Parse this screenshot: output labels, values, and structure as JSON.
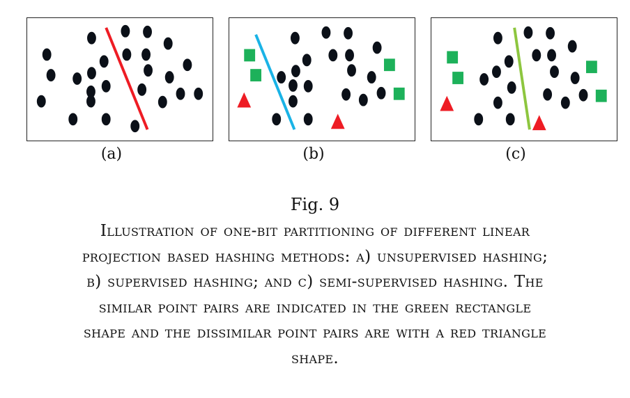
{
  "panels": [
    {
      "label": "(a)",
      "line_color": "#ee1c24",
      "dots": [
        [
          66,
          78
        ],
        [
          72,
          108
        ],
        [
          58,
          146
        ],
        [
          104,
          172
        ],
        [
          110,
          113
        ],
        [
          130,
          132
        ],
        [
          131,
          105
        ],
        [
          131,
          54
        ],
        [
          149,
          88
        ],
        [
          152,
          124
        ],
        [
          152,
          172
        ],
        [
          180,
          44
        ],
        [
          182,
          78
        ],
        [
          194,
          182
        ],
        [
          204,
          129
        ],
        [
          210,
          78
        ],
        [
          212,
          45
        ],
        [
          213,
          101
        ],
        [
          234,
          147
        ],
        [
          242,
          62
        ],
        [
          244,
          111
        ],
        [
          260,
          135
        ],
        [
          270,
          93
        ],
        [
          286,
          135
        ],
        [
          130,
          146
        ]
      ],
      "squares": [],
      "triangles": []
    },
    {
      "label": "(b)",
      "line_color": "#1ab3e6",
      "dots": [
        [
          396,
          172
        ],
        [
          403,
          111
        ],
        [
          420,
          123
        ],
        [
          420,
          146
        ],
        [
          423,
          54
        ],
        [
          424,
          102
        ],
        [
          440,
          86
        ],
        [
          442,
          124
        ],
        [
          442,
          172
        ],
        [
          468,
          46
        ],
        [
          478,
          79
        ],
        [
          500,
          47
        ],
        [
          502,
          79
        ],
        [
          505,
          101
        ],
        [
          497,
          136
        ],
        [
          522,
          144
        ],
        [
          534,
          111
        ],
        [
          548,
          134
        ],
        [
          542,
          68
        ]
      ],
      "squares": [
        [
          357,
          79
        ],
        [
          366,
          108
        ],
        [
          560,
          93
        ],
        [
          574,
          135
        ]
      ],
      "triangles": [
        [
          349,
          145
        ],
        [
          485,
          176
        ]
      ]
    },
    {
      "label": "(c)",
      "line_color": "#8dc63f",
      "dots": [
        [
          686,
          172
        ],
        [
          694,
          114
        ],
        [
          712,
          103
        ],
        [
          714,
          148
        ],
        [
          714,
          54
        ],
        [
          730,
          88
        ],
        [
          734,
          126
        ],
        [
          732,
          172
        ],
        [
          758,
          46
        ],
        [
          770,
          79
        ],
        [
          790,
          47
        ],
        [
          792,
          79
        ],
        [
          796,
          103
        ],
        [
          786,
          136
        ],
        [
          812,
          148
        ],
        [
          826,
          112
        ],
        [
          838,
          137
        ],
        [
          822,
          66
        ]
      ],
      "squares": [
        [
          648,
          82
        ],
        [
          656,
          112
        ],
        [
          850,
          96
        ],
        [
          864,
          138
        ]
      ],
      "triangles": [
        [
          640,
          150
        ],
        [
          774,
          178
        ]
      ]
    }
  ],
  "figure_label": "Fig. 9",
  "caption_lines": [
    "Illustration of one-bit partitioning of different linear",
    "projection based hashing methods: a) unsupervised hashing;",
    "b) supervised hashing; and c) semi-supervised hashing. The",
    "similar point pairs are indicated in the green rectangle",
    "shape and the dissimilar point pairs are with a red triangle",
    "shape."
  ],
  "colors": {
    "dot": "#0b1018",
    "square": "#1db15a",
    "triangle": "#ee1c24"
  }
}
